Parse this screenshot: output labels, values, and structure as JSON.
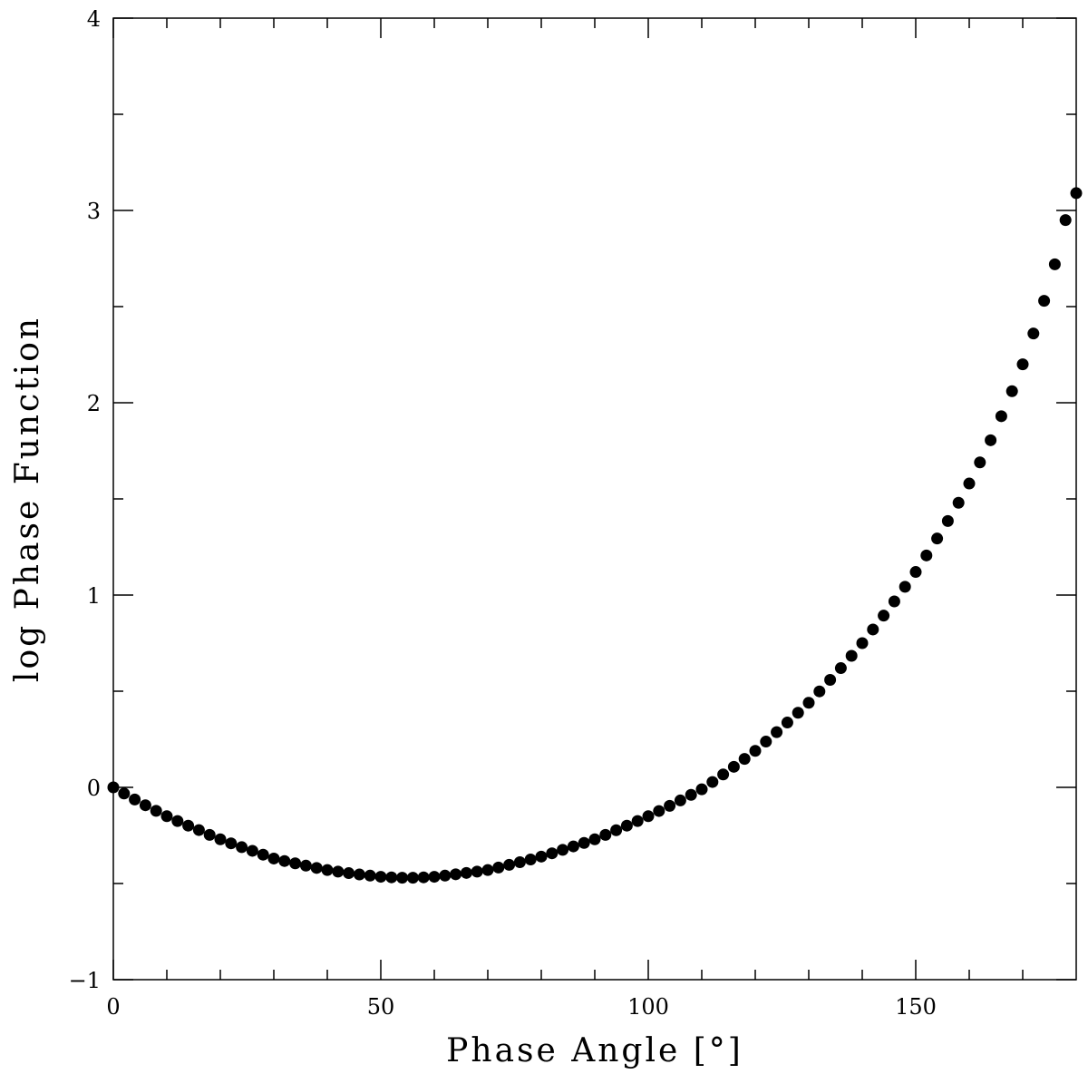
{
  "chart_data": {
    "type": "scatter",
    "x_label": "Phase Angle [°]",
    "y_label": "log Phase Function",
    "color": "#000000",
    "xlim": [
      0,
      180
    ],
    "ylim": [
      -1,
      4
    ],
    "xticks": [
      0,
      50,
      100,
      150
    ],
    "yticks": [
      {
        "value": -1,
        "label": "−1"
      },
      0,
      1,
      2,
      3,
      4
    ],
    "xminorticks": [
      10,
      20,
      30,
      40,
      60,
      70,
      80,
      90,
      110,
      120,
      130,
      140,
      160,
      170
    ],
    "yminorticks": [
      -0.5,
      0.5,
      1.5,
      2.5,
      3.5
    ],
    "x": [
      0,
      2,
      4,
      6,
      8,
      10,
      12,
      14,
      16,
      18,
      20,
      22,
      24,
      26,
      28,
      30,
      32,
      34,
      36,
      38,
      40,
      42,
      44,
      46,
      48,
      50,
      52,
      54,
      56,
      58,
      60,
      62,
      64,
      66,
      68,
      70,
      72,
      74,
      76,
      78,
      80,
      82,
      84,
      86,
      88,
      90,
      92,
      94,
      96,
      98,
      100,
      102,
      104,
      106,
      108,
      110,
      112,
      114,
      116,
      118,
      120,
      122,
      124,
      126,
      128,
      130,
      132,
      134,
      136,
      138,
      140,
      142,
      144,
      146,
      148,
      150,
      152,
      154,
      156,
      158,
      160,
      162,
      164,
      166,
      168,
      170,
      172,
      174,
      176,
      178,
      180
    ],
    "values": [
      0,
      -0.032,
      -0.063,
      -0.093,
      -0.122,
      -0.15,
      -0.175,
      -0.199,
      -0.222,
      -0.247,
      -0.27,
      -0.291,
      -0.311,
      -0.33,
      -0.35,
      -0.37,
      -0.383,
      -0.395,
      -0.407,
      -0.419,
      -0.43,
      -0.438,
      -0.446,
      -0.453,
      -0.459,
      -0.465,
      -0.468,
      -0.47,
      -0.47,
      -0.468,
      -0.465,
      -0.459,
      -0.452,
      -0.445,
      -0.438,
      -0.43,
      -0.417,
      -0.403,
      -0.389,
      -0.375,
      -0.36,
      -0.343,
      -0.325,
      -0.307,
      -0.289,
      -0.27,
      -0.247,
      -0.223,
      -0.199,
      -0.175,
      -0.15,
      -0.123,
      -0.096,
      -0.068,
      -0.039,
      -0.01,
      0.028,
      0.067,
      0.107,
      0.148,
      0.19,
      0.238,
      0.287,
      0.337,
      0.388,
      0.44,
      0.499,
      0.559,
      0.62,
      0.684,
      0.75,
      0.821,
      0.893,
      0.967,
      1.043,
      1.12,
      1.206,
      1.294,
      1.385,
      1.48,
      1.58,
      1.69,
      1.805,
      1.93,
      2.06,
      2.2,
      2.36,
      2.53,
      2.72,
      2.95,
      3.09
    ]
  }
}
